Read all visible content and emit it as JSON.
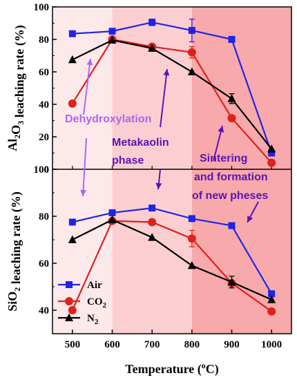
{
  "chart_data": {
    "type": "line",
    "x": [
      500,
      600,
      700,
      800,
      900,
      1000
    ],
    "xlabel": "Temperature (oC)",
    "xlim": [
      450,
      1050
    ],
    "xticks": [
      "500",
      "600",
      "700",
      "800",
      "900",
      "1000"
    ],
    "regions": [
      {
        "from": 450,
        "to": 600,
        "color": "#fde9ea"
      },
      {
        "from": 600,
        "to": 800,
        "color": "#fbcfd1"
      },
      {
        "from": 800,
        "to": 1050,
        "color": "#f7a9ab"
      }
    ],
    "panels": [
      {
        "id": "top",
        "ylabel": "Al2O3 leaching rate (%)",
        "ylim": [
          0,
          100
        ],
        "yticks": [
          "0",
          "20",
          "40",
          "60",
          "80",
          "100"
        ],
        "series": [
          {
            "name": "Air",
            "color": "#1f24e6",
            "marker": "square",
            "values": [
              83.5,
              85,
              90.5,
              85.5,
              80,
              10
            ],
            "errors": [
              1,
              1,
              2,
              7,
              1,
              1
            ]
          },
          {
            "name": "CO2",
            "color": "#e0201c",
            "marker": "circle",
            "values": [
              40.5,
              80,
              75.5,
              72,
              31.5,
              4
            ],
            "errors": [
              1,
              1,
              1.5,
              3.5,
              1,
              1
            ]
          },
          {
            "name": "N2",
            "color": "#000000",
            "marker": "triangle",
            "values": [
              67.5,
              79.5,
              74.5,
              60,
              43.5,
              12.5
            ],
            "errors": [
              1,
              1,
              1,
              1,
              3,
              1
            ]
          }
        ]
      },
      {
        "id": "bottom",
        "ylabel": "SiO2 leaching rate (%)",
        "ylim": [
          30,
          100
        ],
        "yticks": [
          "40",
          "60",
          "80",
          "100"
        ],
        "series": [
          {
            "name": "Air",
            "color": "#1f24e6",
            "marker": "square",
            "values": [
              77.5,
              81.5,
              83.5,
              79,
              76,
              47
            ],
            "errors": [
              1,
              1,
              1,
              1,
              1,
              1
            ]
          },
          {
            "name": "CO2",
            "color": "#e0201c",
            "marker": "circle",
            "values": [
              40,
              78,
              77.5,
              70.5,
              51.5,
              39.5
            ],
            "errors": [
              1,
              1,
              1,
              3.5,
              1,
              1
            ]
          },
          {
            "name": "N2",
            "color": "#000000",
            "marker": "triangle",
            "values": [
              70,
              78.5,
              71,
              59,
              52,
              44.5
            ],
            "errors": [
              1,
              1,
              1,
              1,
              2.5,
              1
            ]
          }
        ]
      }
    ],
    "legend": {
      "placement": "bottom-left",
      "entries": [
        "Air",
        "CO2",
        "N2"
      ]
    },
    "annotations": [
      {
        "text": "Dehydroxylation",
        "color": "#b064f0"
      },
      {
        "text": "Metakaolin",
        "color": "#5a14b4"
      },
      {
        "text": "phase",
        "color": "#5a14b4"
      },
      {
        "text": "Sintering",
        "color": "#5a14b4"
      },
      {
        "text": "and formation",
        "color": "#5a14b4"
      },
      {
        "text": "of new pheses",
        "color": "#5a14b4"
      }
    ]
  }
}
